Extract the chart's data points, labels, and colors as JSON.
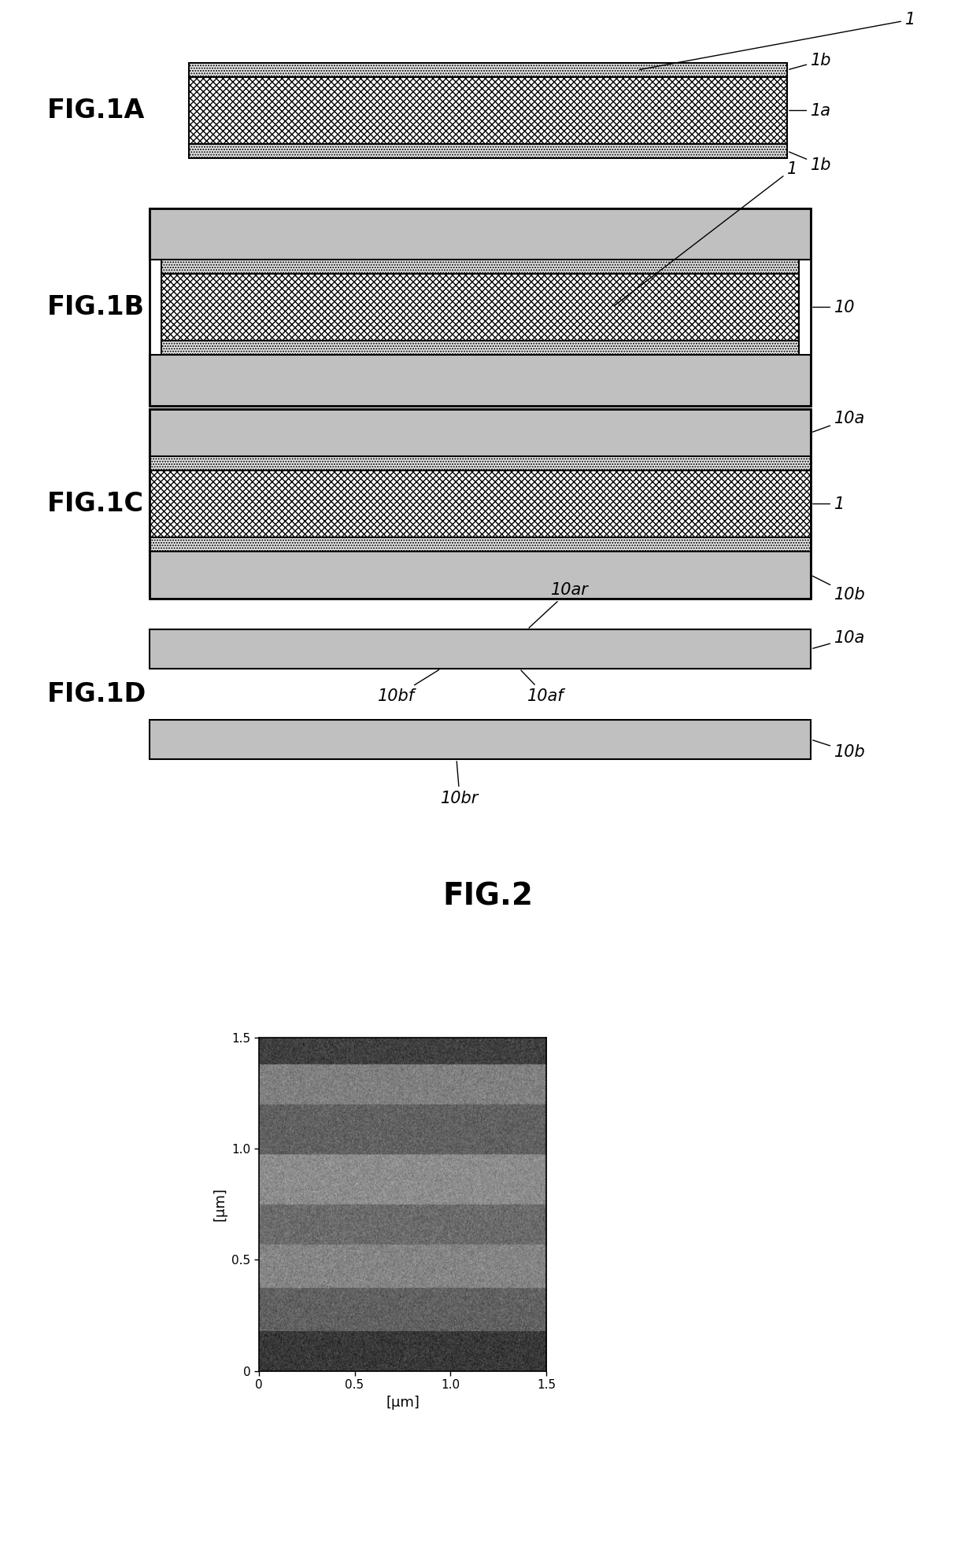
{
  "bg_color": "#ffffff",
  "fig_label_fontsize": 24,
  "fig_label_fontweight": "bold",
  "annotation_fontsize": 15,
  "hatch_cross": "xxxx",
  "hatch_dots": ".....",
  "color_gray_outer": "#c0c0c0",
  "color_gray_dotted_bg": "#e8e8e8",
  "color_cross_bg": "#ffffff",
  "fig2_title": "FIG.2",
  "fig2_xlabel": "[μm]",
  "fig2_ylabel": "[μm]"
}
